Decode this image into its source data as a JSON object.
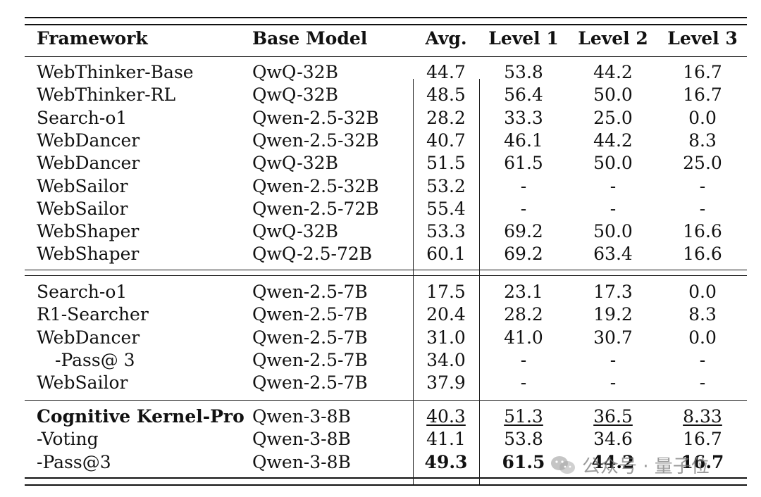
{
  "table": {
    "headers": [
      "Framework",
      "Base Model",
      "Avg.",
      "Level 1",
      "Level 2",
      "Level 3"
    ],
    "groups": [
      [
        [
          "WebThinker-Base",
          "QwQ-32B",
          "44.7",
          "53.8",
          "44.2",
          "16.7"
        ],
        [
          "WebThinker-RL",
          "QwQ-32B",
          "48.5",
          "56.4",
          "50.0",
          "16.7"
        ],
        [
          "Search-o1",
          "Qwen-2.5-32B",
          "28.2",
          "33.3",
          "25.0",
          "0.0"
        ],
        [
          "WebDancer",
          "Qwen-2.5-32B",
          "40.7",
          "46.1",
          "44.2",
          "8.3"
        ],
        [
          "WebDancer",
          "QwQ-32B",
          "51.5",
          "61.5",
          "50.0",
          "25.0"
        ],
        [
          "WebSailor",
          "Qwen-2.5-32B",
          "53.2",
          "-",
          "-",
          "-"
        ],
        [
          "WebSailor",
          "Qwen-2.5-72B",
          "55.4",
          "-",
          "-",
          "-"
        ],
        [
          "WebShaper",
          "QwQ-32B",
          "53.3",
          "69.2",
          "50.0",
          "16.6"
        ],
        [
          "WebShaper",
          "QwQ-2.5-72B",
          "60.1",
          "69.2",
          "63.4",
          "16.6"
        ]
      ],
      [
        [
          "Search-o1",
          "Qwen-2.5-7B",
          "17.5",
          "23.1",
          "17.3",
          "0.0"
        ],
        [
          "R1-Searcher",
          "Qwen-2.5-7B",
          "20.4",
          "28.2",
          "19.2",
          "8.3"
        ],
        [
          "WebDancer",
          "Qwen-2.5-7B",
          "31.0",
          "41.0",
          "30.7",
          "0.0"
        ],
        [
          "-Pass@ 3",
          "Qwen-2.5-7B",
          "34.0",
          "-",
          "-",
          "-"
        ],
        [
          "WebSailor",
          "Qwen-2.5-7B",
          "37.9",
          "-",
          "-",
          "-"
        ]
      ],
      [
        [
          "Cognitive Kernel-Pro",
          "Qwen-3-8B",
          "40.3",
          "51.3",
          "36.5",
          "8.33"
        ],
        [
          "-Voting",
          "Qwen-3-8B",
          "41.1",
          "53.8",
          "34.6",
          "16.7"
        ],
        [
          "-Pass@3",
          "Qwen-3-8B",
          "49.3",
          "61.5",
          "44.2",
          "16.7"
        ]
      ]
    ]
  },
  "watermark": {
    "text": "公众号 · 量子位",
    "icon": "wechat-icon",
    "color": "#787878"
  }
}
